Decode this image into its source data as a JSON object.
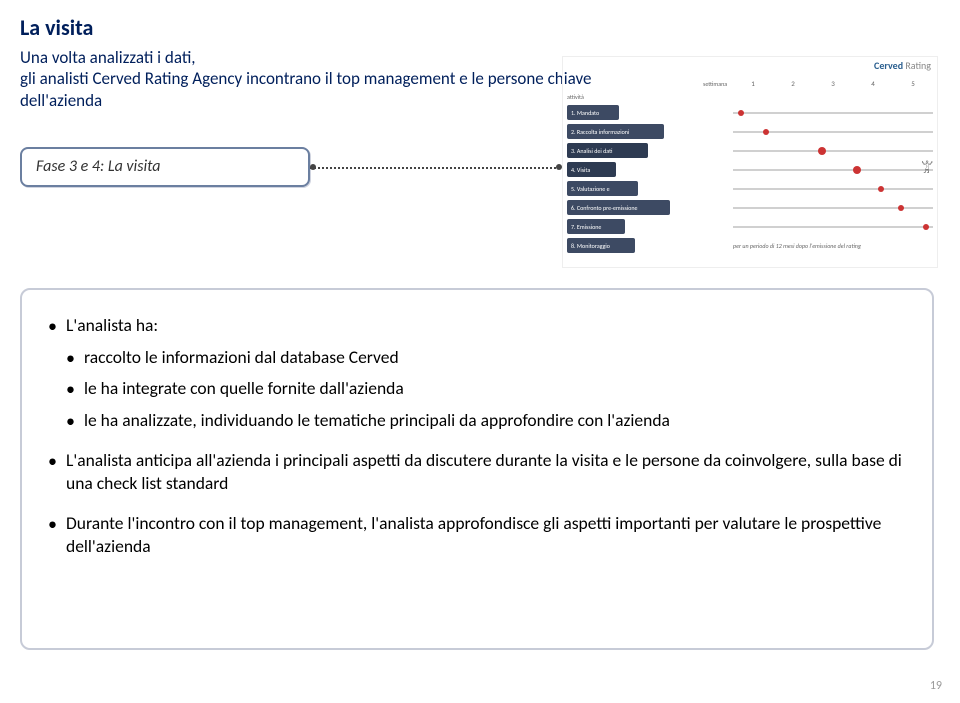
{
  "title": "La visita",
  "subtitle_line1": "Una volta analizzati i dati,",
  "subtitle_line2": "gli analisti Cerved Rating Agency incontrano il top management e le persone chiave dell'azienda",
  "phase_box": "Fase 3 e 4: La visita",
  "logo_line1": "Cerved",
  "logo_line2": "Rating",
  "thumb": {
    "settimana": "settimana",
    "weeks": [
      "1",
      "2",
      "3",
      "4",
      "5"
    ],
    "rows": [
      {
        "label": "attività",
        "dark": false
      },
      {
        "label": "1. Mandato",
        "dark": true,
        "marker": 5
      },
      {
        "label": "2. Raccolta informazioni",
        "dark": true,
        "marker": 30
      },
      {
        "label": "3. Analisi dei dati",
        "dark": true,
        "marker": 85,
        "highlight": true
      },
      {
        "label": "4. Visita",
        "dark": true,
        "marker": 120,
        "highlight": true
      },
      {
        "label": "5. Valutazione e",
        "dark": true,
        "marker": 145
      },
      {
        "label": "6. Confronto pre-emissione",
        "dark": true,
        "marker": 165
      },
      {
        "label": "7. Emissione",
        "dark": true,
        "marker": 190
      },
      {
        "label": "8. Monitoraggio",
        "dark": true
      }
    ],
    "footnote": "per un periodo di 12 mesi dopo l'emissione del rating"
  },
  "content": {
    "lead": "L'analista ha:",
    "sub": [
      "raccolto le informazioni dal database Cerved",
      "le ha integrate con quelle fornite dall'azienda",
      "le ha analizzate, individuando le tematiche principali da approfondire con l'azienda"
    ],
    "b2": "L'analista anticipa all'azienda i principali aspetti da discutere durante la visita e le persone da coinvolgere, sulla base di una check list standard",
    "b3": "Durante l'incontro con il top management, l'analista approfondisce gli aspetti importanti per valutare le prospettive dell'azienda"
  },
  "page_num": "19",
  "colors": {
    "title": "#001f5b",
    "row": "#3d4a63",
    "marker": "#c33",
    "border": "#c7cbd7"
  }
}
